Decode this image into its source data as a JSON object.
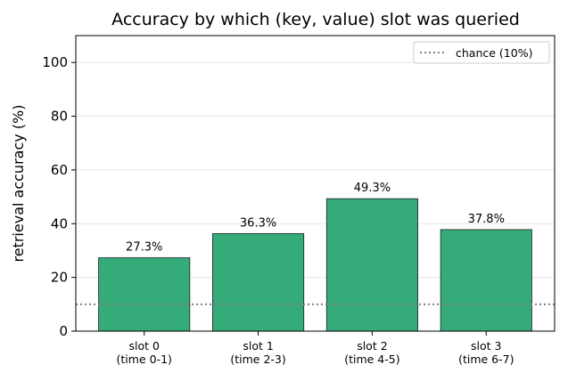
{
  "chart_data": {
    "type": "bar",
    "title": "Accuracy by which (key, value) slot was queried",
    "xlabel": "",
    "ylabel": "retrieval accuracy (%)",
    "ylim": [
      0,
      110
    ],
    "yticks": [
      0,
      20,
      40,
      60,
      80,
      100
    ],
    "grid": "y",
    "categories": [
      [
        "slot 0",
        "(time 0-1)"
      ],
      [
        "slot 1",
        "(time 2-3)"
      ],
      [
        "slot 2",
        "(time 4-5)"
      ],
      [
        "slot 3",
        "(time 6-7)"
      ]
    ],
    "values": [
      27.3,
      36.3,
      49.3,
      37.8
    ],
    "value_labels": [
      "27.3%",
      "36.3%",
      "49.3%",
      "37.8%"
    ],
    "bar_color": "#35ab7a",
    "bar_edge_color": "#1f1f1f",
    "reference_line": {
      "value": 10,
      "label": "chance (10%)",
      "style": "dotted",
      "color": "#7f7f7f"
    },
    "legend_position": "top-right"
  }
}
